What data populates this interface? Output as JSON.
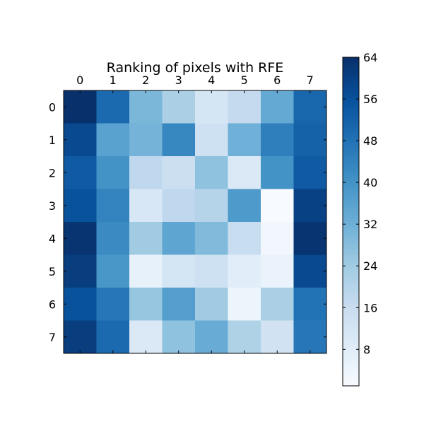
{
  "chart_data": {
    "type": "heatmap",
    "title": "Ranking of pixels with RFE",
    "x_ticks": [
      "0",
      "1",
      "2",
      "3",
      "4",
      "5",
      "6",
      "7"
    ],
    "y_ticks": [
      "0",
      "1",
      "2",
      "3",
      "4",
      "5",
      "6",
      "7"
    ],
    "values": [
      [
        64,
        50,
        30,
        22,
        12,
        17,
        34,
        51
      ],
      [
        58,
        36,
        31,
        43,
        14,
        32,
        45,
        52
      ],
      [
        54,
        40,
        18,
        15,
        27,
        10,
        40,
        54
      ],
      [
        56,
        44,
        11,
        18,
        20,
        38,
        1,
        60
      ],
      [
        63,
        42,
        24,
        35,
        29,
        16,
        3,
        63
      ],
      [
        61,
        39,
        6,
        12,
        14,
        8,
        5,
        58
      ],
      [
        56,
        47,
        26,
        37,
        24,
        4,
        22,
        48
      ],
      [
        61,
        50,
        10,
        27,
        33,
        21,
        13,
        47
      ]
    ],
    "colorbar": {
      "min": 1,
      "max": 64,
      "ticks": [
        8,
        16,
        24,
        32,
        40,
        48,
        56,
        64
      ],
      "colormap": "Blues"
    },
    "grid": false
  }
}
